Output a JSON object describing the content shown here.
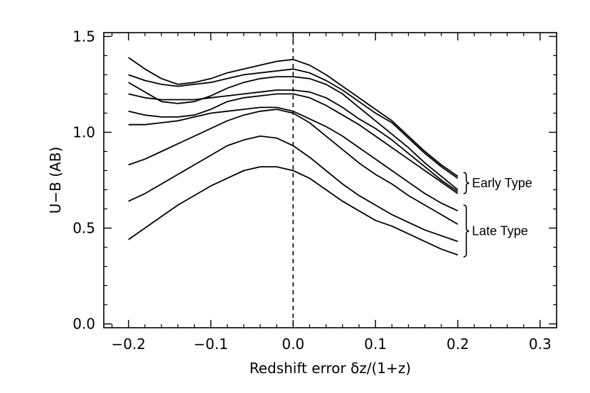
{
  "chart_data": {
    "type": "line",
    "title": "",
    "xlabel": "Redshift error δz/(1+z)",
    "ylabel": "U−B (AB)",
    "xlim": [
      -0.23,
      0.32
    ],
    "ylim": [
      -0.02,
      1.52
    ],
    "x_ticks": [
      -0.2,
      -0.1,
      0.0,
      0.1,
      0.2,
      0.3
    ],
    "x_tick_labels": [
      "−0.2",
      "−0.1",
      "0.0",
      "0.1",
      "0.2",
      "0.3"
    ],
    "y_ticks": [
      0.0,
      0.5,
      1.0,
      1.5
    ],
    "y_tick_labels": [
      "0.0",
      "0.5",
      "1.0",
      "1.5"
    ],
    "grid": false,
    "reference_line": {
      "x": 0.0,
      "style": "dashed"
    },
    "x": [
      -0.2,
      -0.18,
      -0.16,
      -0.14,
      -0.12,
      -0.1,
      -0.08,
      -0.06,
      -0.04,
      -0.02,
      0.0,
      0.02,
      0.04,
      0.06,
      0.08,
      0.1,
      0.12,
      0.14,
      0.16,
      0.18,
      0.2
    ],
    "series": [
      {
        "name": "Early Type 1",
        "group": "Early Type",
        "values": [
          1.39,
          1.33,
          1.28,
          1.25,
          1.26,
          1.28,
          1.31,
          1.33,
          1.35,
          1.37,
          1.38,
          1.35,
          1.3,
          1.24,
          1.18,
          1.12,
          1.06,
          0.98,
          0.9,
          0.83,
          0.77
        ]
      },
      {
        "name": "Early Type 2",
        "group": "Early Type",
        "values": [
          1.3,
          1.27,
          1.25,
          1.24,
          1.25,
          1.26,
          1.28,
          1.3,
          1.31,
          1.32,
          1.33,
          1.31,
          1.27,
          1.22,
          1.16,
          1.1,
          1.05,
          0.97,
          0.89,
          0.82,
          0.76
        ]
      },
      {
        "name": "Early Type 3",
        "group": "Early Type",
        "values": [
          1.26,
          1.21,
          1.16,
          1.15,
          1.16,
          1.19,
          1.23,
          1.26,
          1.28,
          1.29,
          1.29,
          1.28,
          1.25,
          1.2,
          1.13,
          1.06,
          0.99,
          0.92,
          0.84,
          0.77,
          0.7
        ]
      },
      {
        "name": "Early Type 4",
        "group": "Early Type",
        "values": [
          1.2,
          1.18,
          1.17,
          1.17,
          1.17,
          1.18,
          1.19,
          1.2,
          1.21,
          1.22,
          1.22,
          1.21,
          1.18,
          1.13,
          1.07,
          1.02,
          0.96,
          0.89,
          0.82,
          0.75,
          0.69
        ]
      },
      {
        "name": "Early Type 5",
        "group": "Early Type",
        "values": [
          1.11,
          1.09,
          1.08,
          1.08,
          1.09,
          1.12,
          1.16,
          1.18,
          1.19,
          1.2,
          1.2,
          1.18,
          1.14,
          1.09,
          1.04,
          0.98,
          0.92,
          0.86,
          0.8,
          0.74,
          0.68
        ]
      },
      {
        "name": "Late Type 1",
        "group": "Late Type",
        "values": [
          1.04,
          1.04,
          1.05,
          1.06,
          1.08,
          1.1,
          1.11,
          1.12,
          1.13,
          1.13,
          1.11,
          1.07,
          1.03,
          0.98,
          0.92,
          0.86,
          0.8,
          0.74,
          0.68,
          0.63,
          0.59
        ]
      },
      {
        "name": "Late Type 2",
        "group": "Late Type",
        "values": [
          0.83,
          0.86,
          0.9,
          0.94,
          0.98,
          1.02,
          1.06,
          1.09,
          1.11,
          1.12,
          1.1,
          1.05,
          0.98,
          0.91,
          0.84,
          0.78,
          0.73,
          0.67,
          0.62,
          0.57,
          0.52
        ]
      },
      {
        "name": "Late Type 3",
        "group": "Late Type",
        "values": [
          0.64,
          0.68,
          0.73,
          0.78,
          0.83,
          0.88,
          0.93,
          0.96,
          0.98,
          0.97,
          0.93,
          0.87,
          0.8,
          0.73,
          0.67,
          0.62,
          0.57,
          0.53,
          0.49,
          0.46,
          0.43
        ]
      },
      {
        "name": "Late Type 4",
        "group": "Late Type",
        "values": [
          0.44,
          0.5,
          0.56,
          0.62,
          0.67,
          0.72,
          0.76,
          0.8,
          0.82,
          0.82,
          0.8,
          0.76,
          0.7,
          0.64,
          0.59,
          0.54,
          0.51,
          0.47,
          0.43,
          0.39,
          0.36
        ]
      }
    ],
    "annotations": [
      {
        "text": "Early Type",
        "y_range": [
          0.68,
          0.79
        ],
        "x": 0.2
      },
      {
        "text": "Late Type",
        "y_range": [
          0.35,
          0.62
        ],
        "x": 0.2
      }
    ]
  }
}
